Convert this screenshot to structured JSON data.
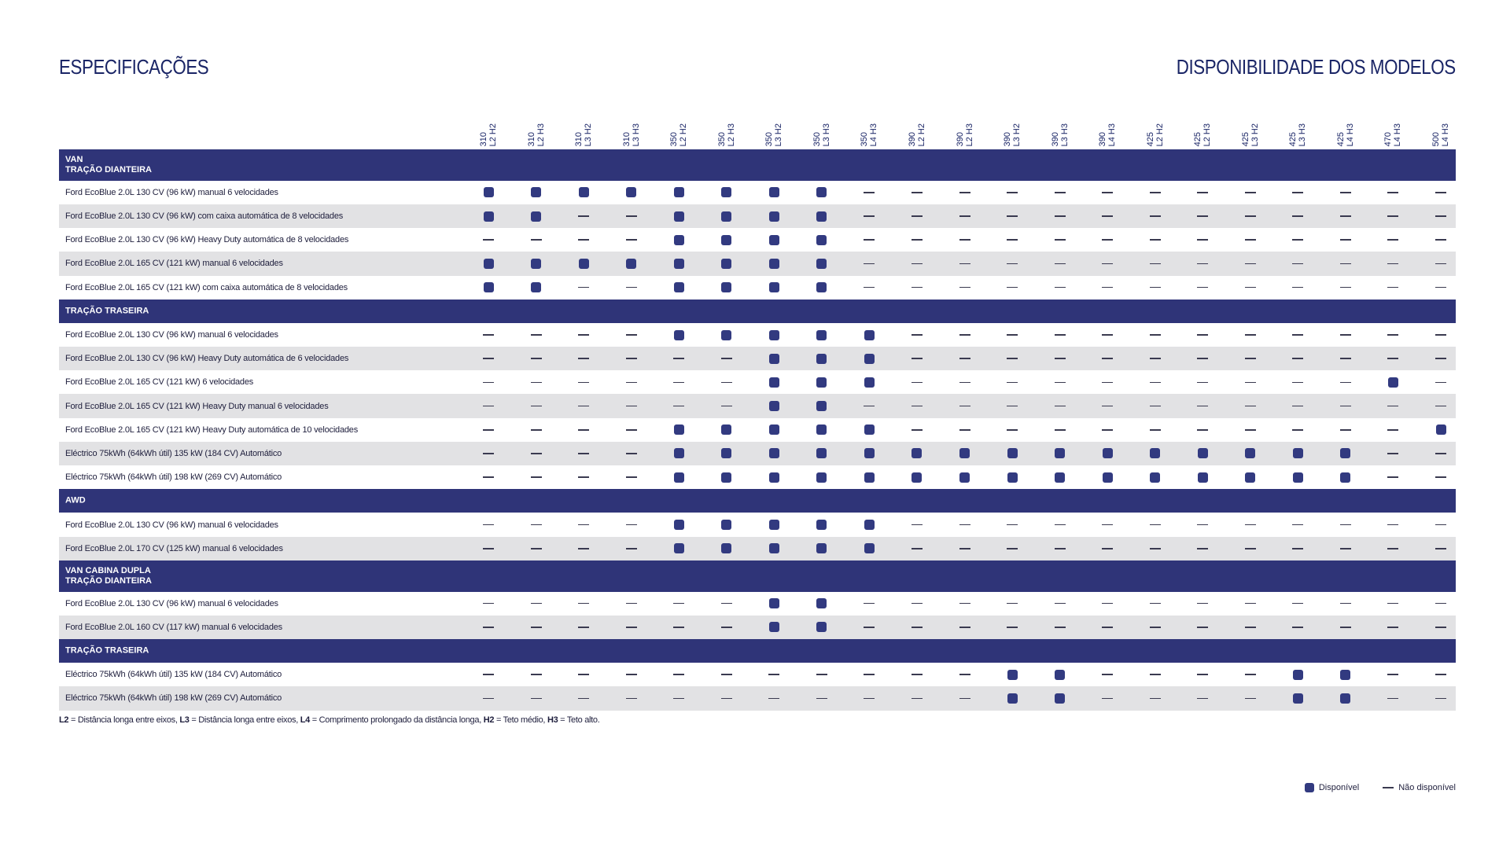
{
  "header": {
    "left_title": "ESPECIFICAÇÕES",
    "right_title": "DISPONIBILIDADE DOS MODELOS"
  },
  "columns": [
    {
      "top": "310",
      "bottom": "L2 H2"
    },
    {
      "top": "310",
      "bottom": "L2 H3"
    },
    {
      "top": "310",
      "bottom": "L3 H2"
    },
    {
      "top": "310",
      "bottom": "L3 H3"
    },
    {
      "top": "350",
      "bottom": "L2 H2"
    },
    {
      "top": "350",
      "bottom": "L2 H3"
    },
    {
      "top": "350",
      "bottom": "L3 H2"
    },
    {
      "top": "350",
      "bottom": "L3 H3"
    },
    {
      "top": "350",
      "bottom": "L4 H3"
    },
    {
      "top": "390",
      "bottom": "L2 H2"
    },
    {
      "top": "390",
      "bottom": "L2 H3"
    },
    {
      "top": "390",
      "bottom": "L3 H2"
    },
    {
      "top": "390",
      "bottom": "L3 H3"
    },
    {
      "top": "390",
      "bottom": "L4 H3"
    },
    {
      "top": "425",
      "bottom": "L2 H2"
    },
    {
      "top": "425",
      "bottom": "L2 H3"
    },
    {
      "top": "425",
      "bottom": "L3 H2"
    },
    {
      "top": "425",
      "bottom": "L3 H3"
    },
    {
      "top": "425",
      "bottom": "L4 H3"
    },
    {
      "top": "470",
      "bottom": "L4 H3"
    },
    {
      "top": "500",
      "bottom": "L4 H3"
    }
  ],
  "sections": [
    {
      "lines": [
        "VAN",
        "TRAÇÃO DIANTEIRA"
      ],
      "rows": [
        {
          "label": "Ford EcoBlue 2.0L 130 CV (96 kW) manual 6 velocidades",
          "avail": "111111110000000000000"
        },
        {
          "label": "Ford EcoBlue 2.0L 130 CV (96 kW) com caixa automática de 8 velocidades",
          "avail": "110011110000000000000"
        },
        {
          "label": "Ford EcoBlue 2.0L 130 CV (96 kW) Heavy Duty automática de 8 velocidades",
          "avail": "000011110000000000000"
        },
        {
          "label": "Ford EcoBlue 2.0L 165 CV (121 kW) manual 6 velocidades",
          "avail": "111111110000000000000"
        },
        {
          "label": "Ford EcoBlue 2.0L 165 CV (121 kW) com caixa automática de 8 velocidades",
          "avail": "110011110000000000000"
        }
      ]
    },
    {
      "lines": [
        "TRAÇÃO TRASEIRA"
      ],
      "rows": [
        {
          "label": "Ford EcoBlue 2.0L 130 CV (96 kW) manual 6 velocidades",
          "avail": "000011111000000000000"
        },
        {
          "label": "Ford EcoBlue 2.0L 130 CV (96 kW) Heavy Duty automática de 6 velocidades",
          "avail": "000000111000000000000"
        },
        {
          "label": "Ford EcoBlue 2.0L 165 CV (121 kW) 6 velocidades",
          "avail": "000000111000000000010"
        },
        {
          "label": "Ford EcoBlue 2.0L 165 CV (121 kW) Heavy Duty manual 6 velocidades",
          "avail": "000000110000000000000"
        },
        {
          "label": "Ford EcoBlue 2.0L 165 CV (121 kW) Heavy Duty automática de 10 velocidades",
          "avail": "000011111000000000001"
        },
        {
          "label": "Eléctrico 75kWh (64kWh útil) 135 kW (184 CV) Automático",
          "avail": "000011111111111111100"
        },
        {
          "label": "Eléctrico 75kWh (64kWh útil) 198 kW (269 CV) Automático",
          "avail": "000011111111111111100"
        }
      ]
    },
    {
      "lines": [
        "AWD"
      ],
      "rows": [
        {
          "label": "Ford EcoBlue 2.0L 130 CV (96 kW) manual 6 velocidades",
          "avail": "000011111000000000000"
        },
        {
          "label": "Ford EcoBlue 2.0L 170 CV (125 kW) manual 6 velocidades",
          "avail": "000011111000000000000"
        }
      ]
    },
    {
      "lines": [
        "VAN CABINA DUPLA",
        "TRAÇÃO DIANTEIRA"
      ],
      "rows": [
        {
          "label": "Ford EcoBlue 2.0L 130 CV (96 kW) manual 6 velocidades",
          "avail": "000000110000000000000"
        },
        {
          "label": "Ford EcoBlue 2.0L 160 CV (117 kW) manual 6 velocidades",
          "avail": "000000110000000000000"
        }
      ]
    },
    {
      "lines": [
        "TRAÇÃO TRASEIRA"
      ],
      "rows": [
        {
          "label": "Eléctrico 75kWh (64kWh útil) 135 kW (184 CV) Automático",
          "avail": "000000000001100001100"
        },
        {
          "label": "Eléctrico 75kWh (64kWh útil) 198 kW (269 CV) Automático",
          "avail": "000000000001100001100"
        }
      ]
    }
  ],
  "footnote": [
    {
      "bold": "L2",
      "text": " = Distância longa entre eixos, "
    },
    {
      "bold": "L3",
      "text": " = Distância longa entre eixos, "
    },
    {
      "bold": "L4",
      "text": " = Comprimento prolongado da distância longa, "
    },
    {
      "bold": "H2",
      "text": " = Teto médio, "
    },
    {
      "bold": "H3",
      "text": " = Teto alto."
    }
  ],
  "legend": {
    "available": "Disponível",
    "unavailable": "Não disponível"
  },
  "colors": {
    "accent": "#2f3478",
    "marker": "#323a80",
    "row_alt": "#e2e2e4"
  }
}
